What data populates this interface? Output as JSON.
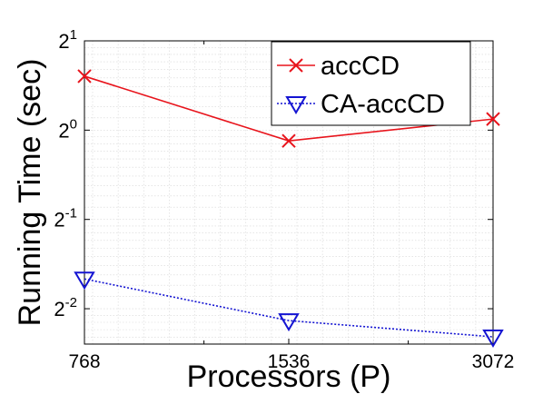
{
  "chart_data": {
    "type": "line",
    "title": "",
    "xlabel": "Processors (P)",
    "ylabel": "Running Time (sec)",
    "x_scale": "log2",
    "y_scale": "log2",
    "x_ticks": [
      {
        "value": 768,
        "label": "768"
      },
      {
        "value": 1536,
        "label": "1536"
      },
      {
        "value": 3072,
        "label": "3072"
      }
    ],
    "y_ticks": [
      {
        "value": 0.25,
        "base": "2",
        "exp": "-2"
      },
      {
        "value": 0.5,
        "base": "2",
        "exp": "-1"
      },
      {
        "value": 1,
        "base": "2",
        "exp": "0"
      },
      {
        "value": 2,
        "base": "2",
        "exp": "1"
      }
    ],
    "xlim": [
      768,
      3072
    ],
    "ylim": [
      0.19,
      2
    ],
    "grid": true,
    "legend_position": "top-right",
    "x": [
      768,
      1536,
      3072
    ],
    "series": [
      {
        "name": "accCD",
        "values": [
          1.52,
          0.92,
          1.09
        ],
        "color": "#e8141c",
        "marker": "x",
        "line_style": "solid"
      },
      {
        "name": "CA-accCD",
        "values": [
          0.315,
          0.228,
          0.201
        ],
        "color": "#1414d2",
        "marker": "triangle-down",
        "line_style": "dotted"
      }
    ]
  }
}
